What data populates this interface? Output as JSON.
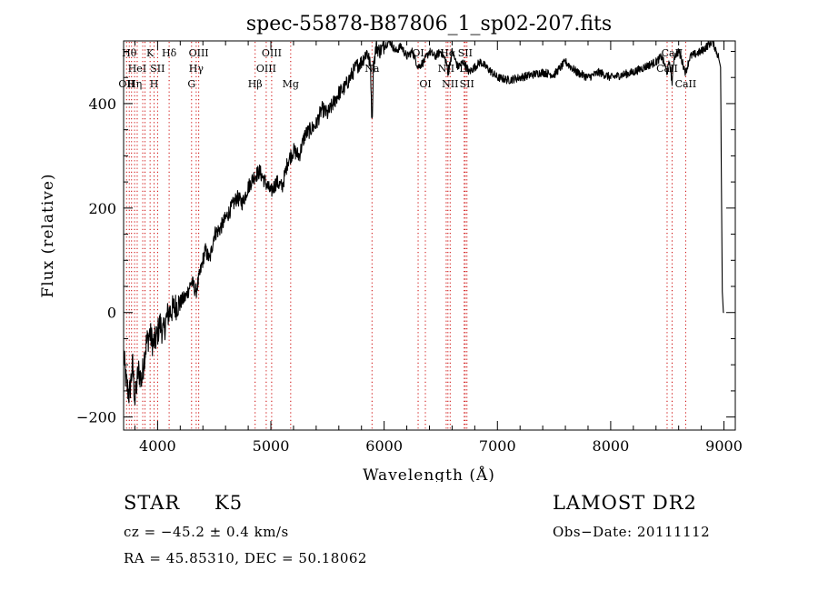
{
  "chart_data": {
    "type": "line",
    "title": "spec-55878-B87806_1_sp02-207.fits",
    "xlabel": "Wavelength (Å)",
    "ylabel": "Flux (relative)",
    "xlim": [
      3700,
      9100
    ],
    "ylim": [
      -225,
      520
    ],
    "x_ticks": [
      4000,
      5000,
      6000,
      7000,
      8000,
      9000
    ],
    "y_ticks": [
      -200,
      0,
      200,
      400
    ],
    "grid": false,
    "line_color": "#000000",
    "marker_line_color": "#cc0000",
    "series": [
      {
        "x": [
          3700,
          3720,
          3750,
          3780,
          3800,
          3830,
          3860,
          3880,
          3900,
          3930,
          3960,
          3990,
          4020,
          4050,
          4080,
          4100,
          4150,
          4200,
          4250,
          4300,
          4340,
          4380,
          4420,
          4460,
          4500,
          4550,
          4600,
          4650,
          4700,
          4750,
          4800,
          4850,
          4900,
          4950,
          5000,
          5050,
          5100,
          5150,
          5200,
          5250,
          5300,
          5350,
          5400,
          5450,
          5500,
          5550,
          5600,
          5650,
          5700,
          5750,
          5800,
          5850,
          5880,
          5893,
          5905,
          5930,
          5960,
          6000,
          6050,
          6100,
          6150,
          6200,
          6250,
          6300,
          6350,
          6400,
          6450,
          6500,
          6550,
          6563,
          6600,
          6650,
          6700,
          6750,
          6800,
          6850,
          6900,
          6950,
          7000,
          7100,
          7200,
          7300,
          7400,
          7500,
          7600,
          7700,
          7800,
          7900,
          8000,
          8100,
          8200,
          8300,
          8400,
          8450,
          8498,
          8520,
          8542,
          8560,
          8600,
          8662,
          8700,
          8800,
          8850,
          8900,
          8950,
          8970,
          8985,
          8995,
          9000
        ],
        "values": [
          -80,
          -130,
          -160,
          -100,
          -170,
          -110,
          -130,
          -90,
          -60,
          -40,
          -60,
          -50,
          -20,
          -40,
          -10,
          0,
          10,
          20,
          30,
          60,
          40,
          80,
          120,
          100,
          150,
          160,
          180,
          200,
          220,
          210,
          240,
          260,
          270,
          250,
          230,
          250,
          240,
          290,
          310,
          300,
          340,
          350,
          360,
          390,
          380,
          400,
          420,
          430,
          450,
          470,
          480,
          500,
          470,
          360,
          470,
          510,
          500,
          510,
          520,
          500,
          510,
          490,
          500,
          470,
          480,
          500,
          490,
          500,
          480,
          455,
          500,
          470,
          480,
          460,
          470,
          480,
          470,
          460,
          450,
          445,
          450,
          455,
          460,
          455,
          480,
          460,
          450,
          460,
          450,
          455,
          460,
          470,
          480,
          490,
          460,
          480,
          440,
          490,
          500,
          460,
          490,
          500,
          510,
          520,
          490,
          470,
          40,
          0,
          0
        ]
      }
    ],
    "line_markers": [
      {
        "x": 3726,
        "label": "OII",
        "row": 3
      },
      {
        "x": 3750,
        "label": "Hθ",
        "row": 1
      },
      {
        "x": 3770,
        "label": "H",
        "row": 3
      },
      {
        "x": 3797,
        "label": "Hη",
        "row": 3
      },
      {
        "x": 3820,
        "label": "HeI",
        "row": 2
      },
      {
        "x": 3869,
        "label": "",
        "row": 0
      },
      {
        "x": 3889,
        "label": "",
        "row": 0
      },
      {
        "x": 3934,
        "label": "K",
        "row": 1
      },
      {
        "x": 3969,
        "label": "H",
        "row": 3
      },
      {
        "x": 4000,
        "label": "SII",
        "row": 2
      },
      {
        "x": 4102,
        "label": "Hδ",
        "row": 1
      },
      {
        "x": 4300,
        "label": "G",
        "row": 3
      },
      {
        "x": 4341,
        "label": "Hγ",
        "row": 2
      },
      {
        "x": 4363,
        "label": "OIII",
        "row": 1
      },
      {
        "x": 4861,
        "label": "Hβ",
        "row": 3
      },
      {
        "x": 4959,
        "label": "OIII",
        "row": 2
      },
      {
        "x": 5007,
        "label": "OIII",
        "row": 1
      },
      {
        "x": 5175,
        "label": "Mg",
        "row": 3
      },
      {
        "x": 5893,
        "label": "Na",
        "row": 2
      },
      {
        "x": 6300,
        "label": "OI",
        "row": 1
      },
      {
        "x": 6364,
        "label": "OI",
        "row": 3
      },
      {
        "x": 6548,
        "label": "NII",
        "row": 2
      },
      {
        "x": 6563,
        "label": "Hα",
        "row": 1
      },
      {
        "x": 6583,
        "label": "NII",
        "row": 3
      },
      {
        "x": 6707,
        "label": "Li",
        "row": 2
      },
      {
        "x": 6716,
        "label": "SII",
        "row": 1
      },
      {
        "x": 6731,
        "label": "SII",
        "row": 3
      },
      {
        "x": 8498,
        "label": "CaII",
        "row": 2
      },
      {
        "x": 8542,
        "label": "CaII",
        "row": 1
      },
      {
        "x": 8662,
        "label": "CaII",
        "row": 3
      }
    ]
  },
  "info": {
    "class": "STAR",
    "subclass": "K5",
    "survey": "LAMOST DR2",
    "cz": "cz = −45.2 ± 0.4 km/s",
    "obs_date": "Obs−Date: 20111112",
    "coords": "RA =  45.85310, DEC =  50.18062"
  }
}
